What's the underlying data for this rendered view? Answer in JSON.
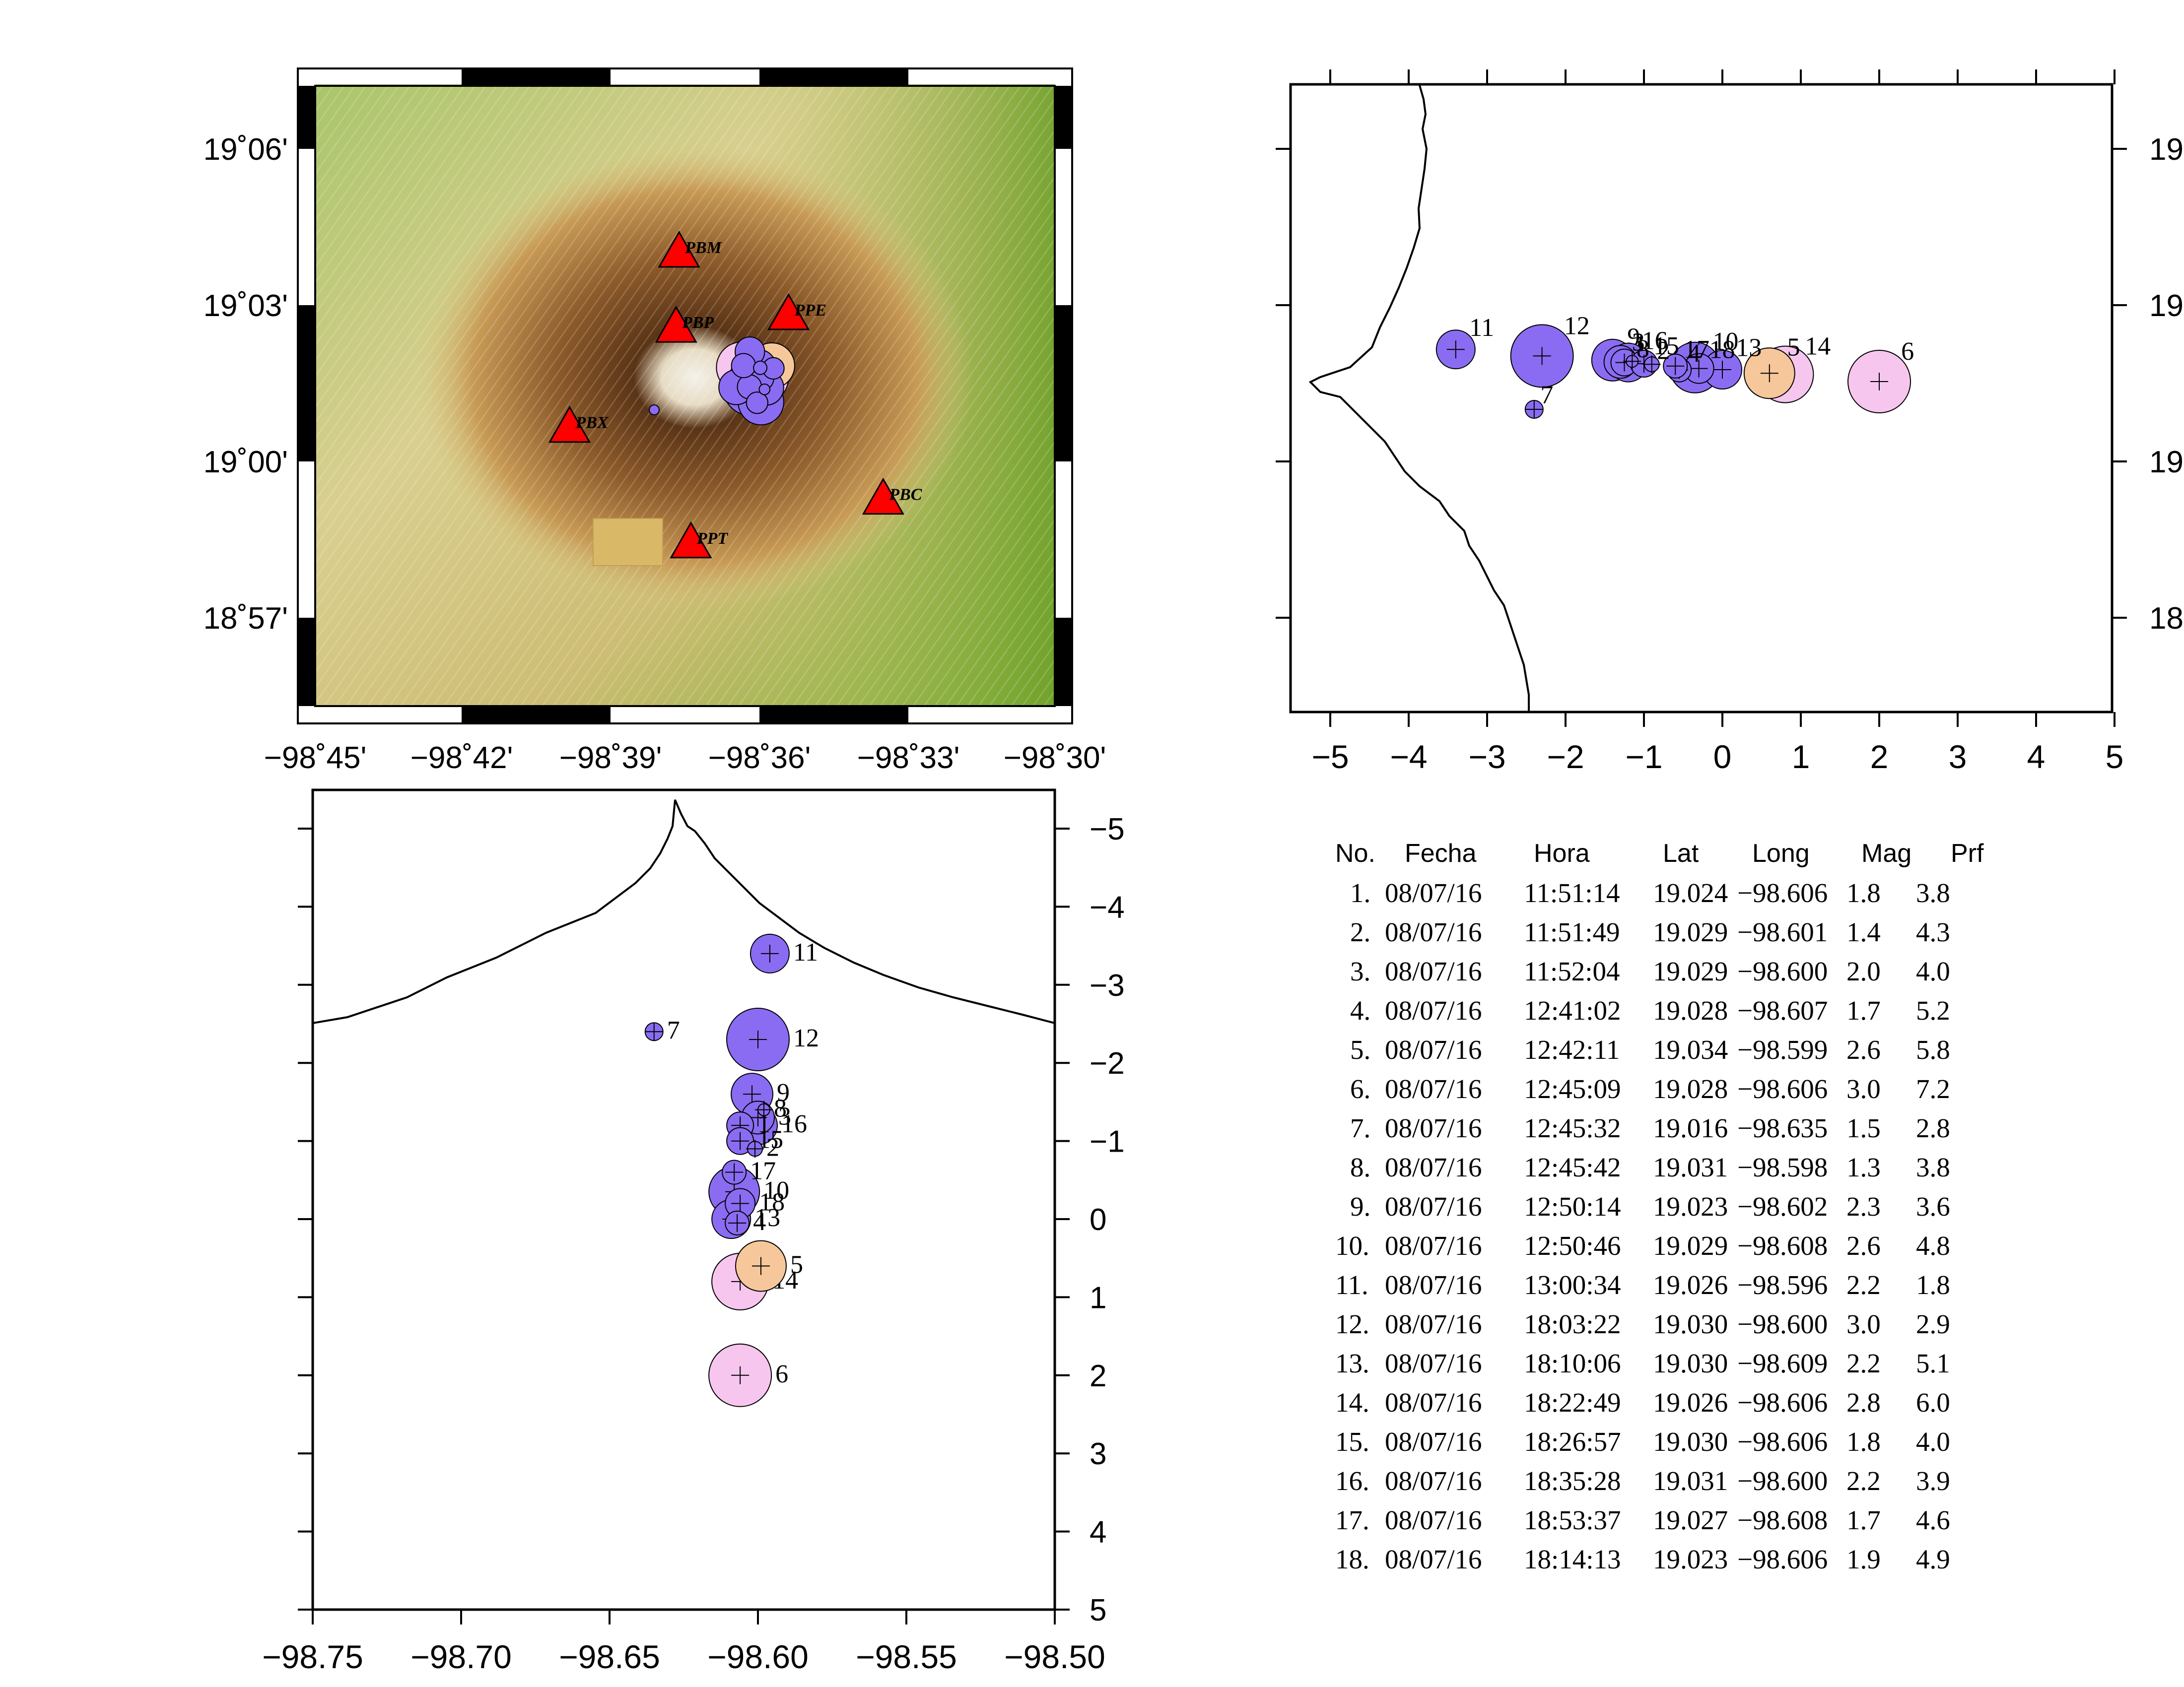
{
  "colors": {
    "event_blue": "#8a6cf2",
    "event_orange": "#f6c79b",
    "event_pink": "#f7c6ee",
    "station_red": "#ff0000",
    "relief_low": "#8fb63c",
    "relief_mid": "#d6c98a",
    "relief_high": "#7a4a1c",
    "crater": "#f2f0ea"
  },
  "icons": {
    "station": "triangle-icon",
    "hypocenter": "circle-cross-icon"
  },
  "map": {
    "x_ticks": [
      "−98˚45'",
      "−98˚42'",
      "−98˚39'",
      "−98˚36'",
      "−98˚33'",
      "−98˚30'"
    ],
    "y_ticks": [
      "19˚06'",
      "19˚03'",
      "19˚00'",
      "18˚57'"
    ],
    "stations": [
      {
        "name": "PBM",
        "lon": -98.627,
        "lat": 19.067
      },
      {
        "name": "PBP",
        "lon": -98.628,
        "lat": 19.043
      },
      {
        "name": "PPE",
        "lon": -98.59,
        "lat": 19.047
      },
      {
        "name": "PBX",
        "lon": -98.664,
        "lat": 19.011
      },
      {
        "name": "PBC",
        "lon": -98.558,
        "lat": 18.988
      },
      {
        "name": "PPT",
        "lon": -98.623,
        "lat": 18.974
      }
    ]
  },
  "ew_section": {
    "x_ticks": [
      "−5",
      "−4",
      "−3",
      "−2",
      "−1",
      "0",
      "1",
      "2",
      "3",
      "4",
      "5"
    ],
    "y_ticks": [
      "19",
      "19",
      "19",
      "18"
    ]
  },
  "depth_section": {
    "x_ticks": [
      "−98.75",
      "−98.70",
      "−98.65",
      "−98.60",
      "−98.55",
      "−98.50"
    ],
    "y_ticks": [
      "−5",
      "−4",
      "−3",
      "−2",
      "−1",
      "0",
      "1",
      "2",
      "3",
      "4",
      "5"
    ]
  },
  "table": {
    "headers": [
      "No.",
      "Fecha",
      "Hora",
      "Lat",
      "Long",
      "Mag",
      "Prf"
    ],
    "rows": [
      [
        "1.",
        "08/07/16",
        "11:51:14",
        "19.024",
        "−98.606",
        "1.8",
        "3.8"
      ],
      [
        "2.",
        "08/07/16",
        "11:51:49",
        "19.029",
        "−98.601",
        "1.4",
        "4.3"
      ],
      [
        "3.",
        "08/07/16",
        "11:52:04",
        "19.029",
        "−98.600",
        "2.0",
        "4.0"
      ],
      [
        "4.",
        "08/07/16",
        "12:41:02",
        "19.028",
        "−98.607",
        "1.7",
        "5.2"
      ],
      [
        "5.",
        "08/07/16",
        "12:42:11",
        "19.034",
        "−98.599",
        "2.6",
        "5.8"
      ],
      [
        "6.",
        "08/07/16",
        "12:45:09",
        "19.028",
        "−98.606",
        "3.0",
        "7.2"
      ],
      [
        "7.",
        "08/07/16",
        "12:45:32",
        "19.016",
        "−98.635",
        "1.5",
        "2.8"
      ],
      [
        "8.",
        "08/07/16",
        "12:45:42",
        "19.031",
        "−98.598",
        "1.3",
        "3.8"
      ],
      [
        "9.",
        "08/07/16",
        "12:50:14",
        "19.023",
        "−98.602",
        "2.3",
        "3.6"
      ],
      [
        "10.",
        "08/07/16",
        "12:50:46",
        "19.029",
        "−98.608",
        "2.6",
        "4.8"
      ],
      [
        "11.",
        "08/07/16",
        "13:00:34",
        "19.026",
        "−98.596",
        "2.2",
        "1.8"
      ],
      [
        "12.",
        "08/07/16",
        "18:03:22",
        "19.030",
        "−98.600",
        "3.0",
        "2.9"
      ],
      [
        "13.",
        "08/07/16",
        "18:10:06",
        "19.030",
        "−98.609",
        "2.2",
        "5.1"
      ],
      [
        "14.",
        "08/07/16",
        "18:22:49",
        "19.026",
        "−98.606",
        "2.8",
        "6.0"
      ],
      [
        "15.",
        "08/07/16",
        "18:26:57",
        "19.030",
        "−98.606",
        "1.8",
        "4.0"
      ],
      [
        "16.",
        "08/07/16",
        "18:35:28",
        "19.031",
        "−98.600",
        "2.2",
        "3.9"
      ],
      [
        "17.",
        "08/07/16",
        "18:53:37",
        "19.027",
        "−98.608",
        "1.7",
        "4.6"
      ],
      [
        "18.",
        "08/07/16",
        "18:14:13",
        "19.023",
        "−98.606",
        "1.9",
        "4.9"
      ]
    ]
  },
  "events": [
    {
      "id": "1",
      "ew": -1.25,
      "depth": -1.2,
      "mag": 1.8,
      "color": "blue"
    },
    {
      "id": "2",
      "ew": -0.9,
      "depth": -0.9,
      "mag": 1.4,
      "color": "blue"
    },
    {
      "id": "3",
      "ew": -1.3,
      "depth": -1.3,
      "mag": 2.0,
      "color": "blue"
    },
    {
      "id": "4",
      "ew": -0.55,
      "depth": 0.05,
      "mag": 1.7,
      "color": "blue"
    },
    {
      "id": "5",
      "ew": 0.6,
      "depth": 0.6,
      "mag": 2.6,
      "color": "orange"
    },
    {
      "id": "6",
      "ew": 2.0,
      "depth": 2.0,
      "mag": 3.0,
      "color": "pink"
    },
    {
      "id": "7",
      "ew": -2.4,
      "depth": -2.4,
      "mag": 1.5,
      "color": "blue"
    },
    {
      "id": "8",
      "ew": -1.15,
      "depth": -1.4,
      "mag": 1.3,
      "color": "blue"
    },
    {
      "id": "9",
      "ew": -1.4,
      "depth": -1.6,
      "mag": 2.3,
      "color": "blue"
    },
    {
      "id": "10",
      "ew": -0.35,
      "depth": -0.35,
      "mag": 2.6,
      "color": "blue"
    },
    {
      "id": "11",
      "ew": -3.4,
      "depth": -3.4,
      "mag": 2.2,
      "color": "blue"
    },
    {
      "id": "12",
      "ew": -2.3,
      "depth": -2.3,
      "mag": 3.0,
      "color": "blue"
    },
    {
      "id": "13",
      "ew": 0.0,
      "depth": 0.0,
      "mag": 2.2,
      "color": "blue"
    },
    {
      "id": "14",
      "ew": 0.8,
      "depth": 0.8,
      "mag": 2.8,
      "color": "pink"
    },
    {
      "id": "15",
      "ew": -1.0,
      "depth": -1.0,
      "mag": 1.8,
      "color": "blue"
    },
    {
      "id": "16",
      "ew": -1.2,
      "depth": -1.2,
      "mag": 2.2,
      "color": "blue"
    },
    {
      "id": "17",
      "ew": -0.6,
      "depth": -0.6,
      "mag": 1.7,
      "color": "blue"
    },
    {
      "id": "18",
      "ew": -0.3,
      "depth": -0.2,
      "mag": 1.9,
      "color": "blue"
    }
  ]
}
